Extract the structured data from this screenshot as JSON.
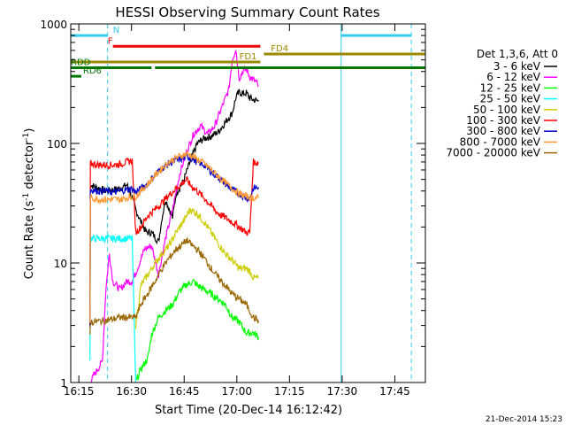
{
  "chart_data": {
    "type": "line",
    "title": "HESSI Observing Summary Count Rates",
    "xlabel": "Start Time (20-Dec-14 16:12:42)",
    "ylabel_main": "Count Rate (s",
    "ylabel_sup1": "-1",
    "ylabel_mid": " detector",
    "ylabel_sup2": "-1",
    "ylabel_end": ")",
    "footer_date": "21-Dec-2014 15:23",
    "x_range_minutes": [
      0,
      101
    ],
    "y_log": true,
    "y_range": [
      1,
      1000
    ],
    "x_ticks": [
      {
        "v": 2.3,
        "label": "16:15"
      },
      {
        "v": 17.3,
        "label": "16:30"
      },
      {
        "v": 32.3,
        "label": "16:45"
      },
      {
        "v": 47.3,
        "label": "17:00"
      },
      {
        "v": 62.3,
        "label": "17:15"
      },
      {
        "v": 77.3,
        "label": "17:30"
      },
      {
        "v": 92.3,
        "label": "17:45"
      }
    ],
    "y_ticks": [
      {
        "v": 1,
        "label": "1"
      },
      {
        "v": 10,
        "label": "10"
      },
      {
        "v": 100,
        "label": "100"
      },
      {
        "v": 1000,
        "label": "1000"
      }
    ],
    "legend_title": "Det 1,3,6, Att 0",
    "series": [
      {
        "name": "3 - 6 keV",
        "color": "#000000",
        "points": [
          [
            5.5,
            3
          ],
          [
            5.6,
            45
          ],
          [
            10,
            40
          ],
          [
            14,
            42
          ],
          [
            16,
            45
          ],
          [
            17.5,
            35
          ],
          [
            18.5,
            28
          ],
          [
            20,
            22
          ],
          [
            21.5,
            18
          ],
          [
            23,
            18
          ],
          [
            25,
            15
          ],
          [
            26,
            24
          ],
          [
            27,
            34
          ],
          [
            29,
            24
          ],
          [
            30,
            38
          ],
          [
            32,
            48
          ],
          [
            34,
            70
          ],
          [
            36,
            100
          ],
          [
            38,
            110
          ],
          [
            40,
            115
          ],
          [
            42,
            125
          ],
          [
            44,
            150
          ],
          [
            46,
            180
          ],
          [
            47,
            240
          ],
          [
            48,
            270
          ],
          [
            49,
            260
          ],
          [
            50,
            265
          ],
          [
            51,
            240
          ],
          [
            52,
            232
          ],
          [
            53,
            228
          ],
          [
            53.5,
            225
          ]
        ]
      },
      {
        "name": "6 - 12 keV",
        "color": "#ff00ff",
        "points": [
          [
            5.5,
            1
          ],
          [
            7,
            1.2
          ],
          [
            9,
            1.5
          ],
          [
            10,
            6
          ],
          [
            11,
            12
          ],
          [
            12,
            7
          ],
          [
            14,
            6
          ],
          [
            16,
            7
          ],
          [
            17.5,
            7
          ],
          [
            19,
            9
          ],
          [
            21,
            13
          ],
          [
            23,
            14
          ],
          [
            25,
            8
          ],
          [
            27,
            16
          ],
          [
            29,
            28
          ],
          [
            31,
            55
          ],
          [
            33,
            85
          ],
          [
            35,
            120
          ],
          [
            37,
            140
          ],
          [
            39,
            120
          ],
          [
            41,
            140
          ],
          [
            43,
            200
          ],
          [
            45,
            280
          ],
          [
            46,
            500
          ],
          [
            47,
            620
          ],
          [
            48,
            350
          ],
          [
            49,
            400
          ],
          [
            50,
            420
          ],
          [
            51,
            360
          ],
          [
            52,
            340
          ],
          [
            53,
            320
          ],
          [
            53.5,
            300
          ]
        ]
      },
      {
        "name": "12 - 25 keV",
        "color": "#00ff00",
        "points": [
          [
            18.5,
            1
          ],
          [
            20,
            1.3
          ],
          [
            22,
            1.6
          ],
          [
            23,
            2.5
          ],
          [
            25,
            3.5
          ],
          [
            27,
            4
          ],
          [
            29,
            4.5
          ],
          [
            31,
            5.8
          ],
          [
            33,
            6.6
          ],
          [
            35,
            7
          ],
          [
            36,
            6.5
          ],
          [
            38,
            6
          ],
          [
            40,
            5.5
          ],
          [
            42,
            5
          ],
          [
            44,
            4.5
          ],
          [
            46,
            3.5
          ],
          [
            48,
            3.2
          ],
          [
            50,
            2.6
          ],
          [
            52,
            2.6
          ],
          [
            53.5,
            2.4
          ]
        ]
      },
      {
        "name": "25 - 50 keV",
        "color": "#00ffff",
        "points": [
          [
            5.5,
            1.5
          ],
          [
            5.6,
            16
          ],
          [
            10,
            16
          ],
          [
            15,
            16
          ],
          [
            17.5,
            16
          ],
          [
            18.5,
            1
          ]
        ]
      },
      {
        "name": "50 - 100 keV",
        "color": "#cccc00",
        "points": [
          [
            18.5,
            3
          ],
          [
            20,
            6.5
          ],
          [
            22,
            8
          ],
          [
            24,
            10
          ],
          [
            26,
            12
          ],
          [
            28,
            14
          ],
          [
            30,
            18
          ],
          [
            32,
            22
          ],
          [
            34,
            28
          ],
          [
            36,
            26
          ],
          [
            38,
            22
          ],
          [
            40,
            18
          ],
          [
            42,
            14.5
          ],
          [
            44,
            12
          ],
          [
            46,
            10.5
          ],
          [
            48,
            9
          ],
          [
            50,
            9
          ],
          [
            51,
            8.5
          ],
          [
            52,
            7.5
          ],
          [
            53.5,
            7.5
          ]
        ]
      },
      {
        "name": "100 - 300 keV",
        "color": "#ff0000",
        "points": [
          [
            5.5,
            3
          ],
          [
            5.6,
            68
          ],
          [
            8,
            66
          ],
          [
            10,
            66
          ],
          [
            12,
            66
          ],
          [
            14,
            67
          ],
          [
            16,
            70
          ],
          [
            17.5,
            72
          ],
          [
            18.5,
            18
          ],
          [
            20,
            20
          ],
          [
            22,
            25
          ],
          [
            24,
            28
          ],
          [
            26,
            32
          ],
          [
            28,
            37
          ],
          [
            30,
            42
          ],
          [
            32,
            47
          ],
          [
            33,
            50
          ],
          [
            34,
            45
          ],
          [
            36,
            40
          ],
          [
            38,
            35
          ],
          [
            40,
            30
          ],
          [
            42,
            26
          ],
          [
            44,
            24
          ],
          [
            46,
            22
          ],
          [
            48,
            20
          ],
          [
            50,
            18
          ],
          [
            51,
            18
          ],
          [
            52,
            70
          ],
          [
            53.5,
            68
          ]
        ]
      },
      {
        "name": "300 - 800 keV",
        "color": "#0000cc",
        "points": [
          [
            5.5,
            3
          ],
          [
            5.6,
            41
          ],
          [
            8,
            40
          ],
          [
            10,
            40
          ],
          [
            12,
            39
          ],
          [
            14,
            40
          ],
          [
            16,
            41
          ],
          [
            17.5,
            42
          ],
          [
            18.5,
            39
          ],
          [
            20,
            42
          ],
          [
            22,
            46
          ],
          [
            24,
            55
          ],
          [
            26,
            62
          ],
          [
            28,
            68
          ],
          [
            30,
            72
          ],
          [
            32,
            75
          ],
          [
            33,
            78
          ],
          [
            34,
            76
          ],
          [
            36,
            70
          ],
          [
            38,
            66
          ],
          [
            40,
            58
          ],
          [
            42,
            52
          ],
          [
            44,
            46
          ],
          [
            46,
            41
          ],
          [
            48,
            38
          ],
          [
            50,
            35
          ],
          [
            51,
            35
          ],
          [
            52,
            42
          ],
          [
            53.5,
            43
          ]
        ]
      },
      {
        "name": "800 - 7000 keV",
        "color": "#ff9933",
        "points": [
          [
            5.5,
            3
          ],
          [
            5.6,
            35
          ],
          [
            8,
            34
          ],
          [
            10,
            34
          ],
          [
            12,
            34
          ],
          [
            14,
            34
          ],
          [
            16,
            35
          ],
          [
            17.5,
            36
          ],
          [
            18.5,
            36
          ],
          [
            20,
            40
          ],
          [
            22,
            46
          ],
          [
            24,
            54
          ],
          [
            26,
            62
          ],
          [
            28,
            70
          ],
          [
            30,
            76
          ],
          [
            32,
            80
          ],
          [
            33,
            82
          ],
          [
            34,
            80
          ],
          [
            36,
            74
          ],
          [
            38,
            68
          ],
          [
            40,
            60
          ],
          [
            42,
            53
          ],
          [
            44,
            47
          ],
          [
            46,
            42
          ],
          [
            48,
            38
          ],
          [
            50,
            36
          ],
          [
            52,
            35
          ],
          [
            53.5,
            35
          ]
        ]
      },
      {
        "name": "7000 - 20000 keV",
        "color": "#996600",
        "points": [
          [
            5.5,
            2.5
          ],
          [
            5.6,
            3.2
          ],
          [
            10,
            3.3
          ],
          [
            14,
            3.5
          ],
          [
            17.5,
            3.5
          ],
          [
            18.5,
            3.5
          ],
          [
            20,
            4.5
          ],
          [
            22,
            5.6
          ],
          [
            24,
            7
          ],
          [
            26,
            9
          ],
          [
            28,
            11
          ],
          [
            30,
            13
          ],
          [
            32,
            14.5
          ],
          [
            33,
            15.5
          ],
          [
            34,
            14.5
          ],
          [
            36,
            13
          ],
          [
            38,
            11
          ],
          [
            40,
            9
          ],
          [
            42,
            7.5
          ],
          [
            44,
            6.5
          ],
          [
            46,
            5.5
          ],
          [
            48,
            5
          ],
          [
            50,
            4.5
          ],
          [
            52,
            3.5
          ],
          [
            53.5,
            3.3
          ]
        ]
      }
    ],
    "state_bars": [
      {
        "label": "N",
        "color": "#33ccee",
        "y": 800,
        "segments": [
          [
            0,
            10.5
          ],
          [
            77,
            97
          ]
        ],
        "label_x": 12
      },
      {
        "label": "F",
        "color": "#ee0000",
        "y": 650,
        "segments": [
          [
            12,
            54
          ]
        ],
        "label_x": 10.5
      },
      {
        "label": "FD1",
        "color": "#998800",
        "y": 480,
        "segments": [
          [
            0,
            54
          ]
        ],
        "label_x": 48
      },
      {
        "label": "FD4",
        "color": "#998800",
        "y": 560,
        "segments": [
          [
            55,
            101
          ]
        ],
        "label_x": 57
      },
      {
        "label": "RDD",
        "color": "#007700",
        "y": 430,
        "segments": [
          [
            0,
            23
          ],
          [
            24,
            101
          ]
        ],
        "label_x": 0
      },
      {
        "label": "RD6",
        "color": "#007700",
        "y": 365,
        "segments": [
          [
            0,
            3
          ]
        ],
        "label_x": 3.5
      }
    ],
    "vlines": [
      {
        "x": 10.5,
        "color": "#33ccee",
        "style": "dashed"
      },
      {
        "x": 77,
        "color": "#33ccee",
        "style": "solid"
      },
      {
        "x": 97,
        "color": "#33ccee",
        "style": "dashed"
      }
    ]
  }
}
